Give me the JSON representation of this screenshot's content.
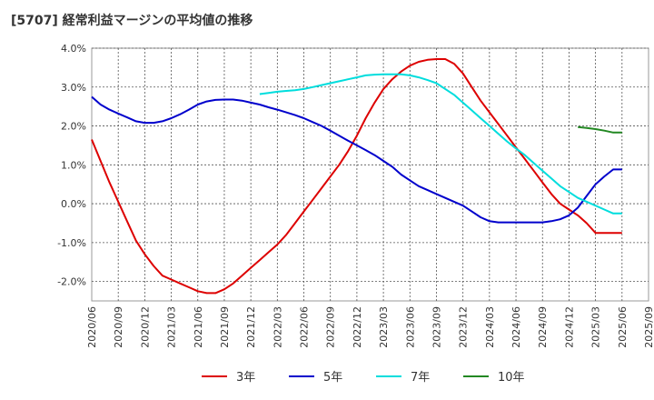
{
  "title": "[5707]  経常利益マージンの平均値の推移",
  "chart_data": {
    "type": "line",
    "title": "[5707]  経常利益マージンの平均値の推移",
    "xlabel": "",
    "ylabel": "",
    "ylim": [
      -2.5,
      4.0
    ],
    "yticks": [
      "4.0%",
      "3.0%",
      "2.0%",
      "1.0%",
      "0.0%",
      "-1.0%",
      "-2.0%"
    ],
    "ytick_values": [
      4.0,
      3.0,
      2.0,
      1.0,
      0.0,
      -1.0,
      -2.0
    ],
    "xticks": [
      "2020/06",
      "2020/09",
      "2020/12",
      "2021/03",
      "2021/06",
      "2021/09",
      "2021/12",
      "2022/03",
      "2022/06",
      "2022/09",
      "2022/12",
      "2023/03",
      "2023/06",
      "2023/09",
      "2023/12",
      "2024/03",
      "2024/06",
      "2024/09",
      "2024/12",
      "2025/03",
      "2025/06",
      "2025/09"
    ],
    "grid": true,
    "legend_position": "bottom",
    "series": [
      {
        "name": "3年",
        "color": "#dd0000",
        "x": [
          "2020/06",
          "2020/07",
          "2020/08",
          "2020/09",
          "2020/10",
          "2020/11",
          "2020/12",
          "2021/01",
          "2021/02",
          "2021/03",
          "2021/04",
          "2021/05",
          "2021/06",
          "2021/07",
          "2021/08",
          "2021/09",
          "2021/10",
          "2021/11",
          "2021/12",
          "2022/01",
          "2022/02",
          "2022/03",
          "2022/04",
          "2022/05",
          "2022/06",
          "2022/07",
          "2022/08",
          "2022/09",
          "2022/10",
          "2022/11",
          "2022/12",
          "2023/01",
          "2023/02",
          "2023/03",
          "2023/04",
          "2023/05",
          "2023/06",
          "2023/07",
          "2023/08",
          "2023/09",
          "2023/10",
          "2023/11",
          "2023/12",
          "2024/01",
          "2024/02",
          "2024/03",
          "2024/04",
          "2024/05",
          "2024/06",
          "2024/07",
          "2024/08",
          "2024/09",
          "2024/10",
          "2024/11",
          "2024/12",
          "2025/01",
          "2025/02",
          "2025/03",
          "2025/04",
          "2025/05",
          "2025/06"
        ],
        "values": [
          1.65,
          1.1,
          0.55,
          0.05,
          -0.45,
          -0.95,
          -1.3,
          -1.6,
          -1.85,
          -1.95,
          -2.05,
          -2.15,
          -2.25,
          -2.3,
          -2.3,
          -2.2,
          -2.05,
          -1.85,
          -1.65,
          -1.45,
          -1.25,
          -1.05,
          -0.8,
          -0.5,
          -0.2,
          0.1,
          0.4,
          0.7,
          1.0,
          1.35,
          1.75,
          2.2,
          2.6,
          2.95,
          3.2,
          3.4,
          3.55,
          3.65,
          3.7,
          3.72,
          3.72,
          3.6,
          3.35,
          3.0,
          2.65,
          2.35,
          2.05,
          1.75,
          1.45,
          1.15,
          0.85,
          0.55,
          0.25,
          0.0,
          -0.15,
          -0.3,
          -0.5,
          -0.75,
          -0.75,
          -0.75,
          -0.75
        ]
      },
      {
        "name": "5年",
        "color": "#0000cc",
        "x": [
          "2020/06",
          "2020/07",
          "2020/08",
          "2020/09",
          "2020/10",
          "2020/11",
          "2020/12",
          "2021/01",
          "2021/02",
          "2021/03",
          "2021/04",
          "2021/05",
          "2021/06",
          "2021/07",
          "2021/08",
          "2021/09",
          "2021/10",
          "2021/11",
          "2021/12",
          "2022/01",
          "2022/02",
          "2022/03",
          "2022/04",
          "2022/05",
          "2022/06",
          "2022/07",
          "2022/08",
          "2022/09",
          "2022/10",
          "2022/11",
          "2022/12",
          "2023/01",
          "2023/02",
          "2023/03",
          "2023/04",
          "2023/05",
          "2023/06",
          "2023/07",
          "2023/08",
          "2023/09",
          "2023/10",
          "2023/11",
          "2023/12",
          "2024/01",
          "2024/02",
          "2024/03",
          "2024/04",
          "2024/05",
          "2024/06",
          "2024/07",
          "2024/08",
          "2024/09",
          "2024/10",
          "2024/11",
          "2024/12",
          "2025/01",
          "2025/02",
          "2025/03",
          "2025/04",
          "2025/05",
          "2025/06"
        ],
        "values": [
          2.75,
          2.55,
          2.42,
          2.32,
          2.22,
          2.12,
          2.08,
          2.08,
          2.12,
          2.2,
          2.3,
          2.42,
          2.55,
          2.63,
          2.67,
          2.68,
          2.68,
          2.65,
          2.6,
          2.55,
          2.48,
          2.42,
          2.35,
          2.28,
          2.2,
          2.1,
          2.0,
          1.88,
          1.75,
          1.62,
          1.5,
          1.38,
          1.25,
          1.1,
          0.95,
          0.75,
          0.6,
          0.45,
          0.35,
          0.25,
          0.15,
          0.05,
          -0.05,
          -0.2,
          -0.35,
          -0.45,
          -0.48,
          -0.48,
          -0.48,
          -0.48,
          -0.48,
          -0.48,
          -0.45,
          -0.4,
          -0.3,
          -0.1,
          0.2,
          0.5,
          0.7,
          0.88,
          0.88
        ]
      },
      {
        "name": "7年",
        "color": "#00dddd",
        "x": [
          "2022/01",
          "2022/02",
          "2022/03",
          "2022/04",
          "2022/05",
          "2022/06",
          "2022/07",
          "2022/08",
          "2022/09",
          "2022/10",
          "2022/11",
          "2022/12",
          "2023/01",
          "2023/02",
          "2023/03",
          "2023/04",
          "2023/05",
          "2023/06",
          "2023/07",
          "2023/08",
          "2023/09",
          "2023/10",
          "2023/11",
          "2023/12",
          "2024/01",
          "2024/02",
          "2024/03",
          "2024/04",
          "2024/05",
          "2024/06",
          "2024/07",
          "2024/08",
          "2024/09",
          "2024/10",
          "2024/11",
          "2024/12",
          "2025/01",
          "2025/02",
          "2025/03",
          "2025/04",
          "2025/05",
          "2025/06"
        ],
        "values": [
          2.82,
          2.85,
          2.88,
          2.9,
          2.92,
          2.95,
          3.0,
          3.05,
          3.1,
          3.15,
          3.2,
          3.25,
          3.3,
          3.32,
          3.33,
          3.33,
          3.33,
          3.3,
          3.25,
          3.18,
          3.1,
          2.95,
          2.8,
          2.6,
          2.4,
          2.2,
          2.0,
          1.8,
          1.6,
          1.42,
          1.25,
          1.05,
          0.85,
          0.65,
          0.45,
          0.3,
          0.15,
          0.05,
          -0.05,
          -0.15,
          -0.25,
          -0.25
        ]
      },
      {
        "name": "10年",
        "color": "#228822",
        "x": [
          "2025/01",
          "2025/02",
          "2025/03",
          "2025/04",
          "2025/05",
          "2025/06"
        ],
        "values": [
          1.97,
          1.95,
          1.92,
          1.88,
          1.83,
          1.83
        ]
      }
    ]
  }
}
